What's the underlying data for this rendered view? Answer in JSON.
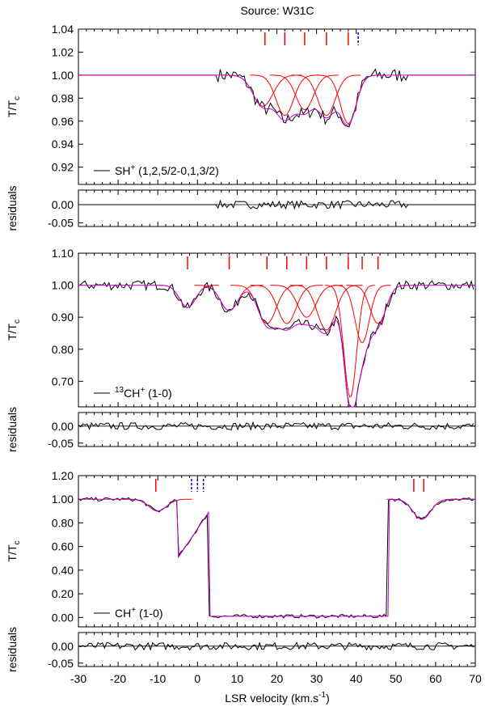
{
  "figure": {
    "title": "Source: W31C",
    "xlabel": "LSR velocity (km.s",
    "xlabel_sup": "-1",
    "xlabel_end": ")",
    "xlim": [
      -30,
      70
    ],
    "xticks": [
      "-30",
      "-20",
      "-10",
      "0",
      "10",
      "20",
      "30",
      "40",
      "50",
      "60",
      "70"
    ],
    "colors": {
      "data": "#000000",
      "component": "#ff0000",
      "model": "#cc00cc",
      "dashed": "#0000cc",
      "extra": "#00cc00"
    }
  },
  "chart_data": [
    {
      "type": "line",
      "panel": "SH+ spectrum",
      "ylabel": "T/T",
      "ylabel_sub": "c",
      "ylim": [
        0.905,
        1.04
      ],
      "yticks": [
        "1.04",
        "1.02",
        "1.00",
        "0.98",
        "0.96",
        "0.94",
        "0.92"
      ],
      "legend": {
        "label": "SH",
        "sup": "+",
        "rest": " (1,2,5/2-0,1,3/2)"
      },
      "markers_solid": [
        17,
        22,
        27,
        32.5,
        38
      ],
      "markers_dashed": [
        40.5
      ],
      "components": [
        {
          "center": 16.5,
          "depth": 0.027,
          "width": 2.5
        },
        {
          "center": 22,
          "depth": 0.035,
          "width": 2.2
        },
        {
          "center": 27,
          "depth": 0.03,
          "width": 2.2
        },
        {
          "center": 32.5,
          "depth": 0.035,
          "width": 2.2
        },
        {
          "center": 38,
          "depth": 0.042,
          "width": 2.0
        }
      ],
      "spectrum_range": [
        5,
        53
      ]
    },
    {
      "type": "line",
      "panel": "SH+ residuals",
      "ylabel": "residuals",
      "ylim": [
        -0.06,
        0.04
      ],
      "yticks": [
        "0.00",
        "-0.05"
      ]
    },
    {
      "type": "line",
      "panel": "13CH+ spectrum",
      "ylabel": "T/T",
      "ylabel_sub": "c",
      "ylim": [
        0.62,
        1.1
      ],
      "yticks": [
        "1.10",
        "1.00",
        "0.90",
        "0.80",
        "0.70"
      ],
      "legend": {
        "label": "13",
        "sup": "",
        "rest": "CH",
        "rest_sup": "+",
        "rest_end": " (1-0)"
      },
      "markers_solid": [
        -2.5,
        8,
        17.5,
        22.5,
        27.5,
        32.5,
        38,
        41.5,
        45.5
      ],
      "markers_dashed": [],
      "components": [
        {
          "center": -2.5,
          "depth": 0.07,
          "width": 2.0
        },
        {
          "center": 8,
          "depth": 0.08,
          "width": 2.2
        },
        {
          "center": 17.5,
          "depth": 0.12,
          "width": 2.3
        },
        {
          "center": 22.5,
          "depth": 0.12,
          "width": 2.3
        },
        {
          "center": 27.5,
          "depth": 0.1,
          "width": 2.3
        },
        {
          "center": 32.5,
          "depth": 0.14,
          "width": 2.3
        },
        {
          "center": 38.5,
          "depth": 0.35,
          "width": 1.6
        },
        {
          "center": 41.5,
          "depth": 0.18,
          "width": 1.8
        },
        {
          "center": 45.5,
          "depth": 0.12,
          "width": 2.0
        }
      ],
      "spectrum_range": [
        -30,
        70
      ]
    },
    {
      "type": "line",
      "panel": "13CH+ residuals",
      "ylabel": "residuals",
      "ylim": [
        -0.06,
        0.04
      ],
      "yticks": [
        "0.00",
        "-0.05"
      ]
    },
    {
      "type": "line",
      "panel": "CH+ spectrum",
      "ylabel": "T/T",
      "ylabel_sub": "c",
      "ylim": [
        -0.08,
        1.2
      ],
      "yticks": [
        "1.20",
        "1.00",
        "0.80",
        "0.60",
        "0.40",
        "0.20",
        "0.00"
      ],
      "legend": {
        "label": "CH",
        "sup": "+",
        "rest": " (1-0)"
      },
      "markers_solid": [
        -10.5,
        54.5,
        57
      ],
      "markers_dashed": [
        -1.5,
        0,
        1.5
      ],
      "components": [
        {
          "center": -10,
          "depth": 0.1,
          "width": 2.2
        },
        {
          "center": 56.5,
          "depth": 0.17,
          "width": 2.2
        }
      ],
      "spectrum_range": [
        -30,
        70
      ]
    },
    {
      "type": "line",
      "panel": "CH+ residuals",
      "ylabel": "residuals",
      "ylim": [
        -0.06,
        0.04
      ],
      "yticks": [
        "0.00",
        "-0.05"
      ]
    }
  ]
}
